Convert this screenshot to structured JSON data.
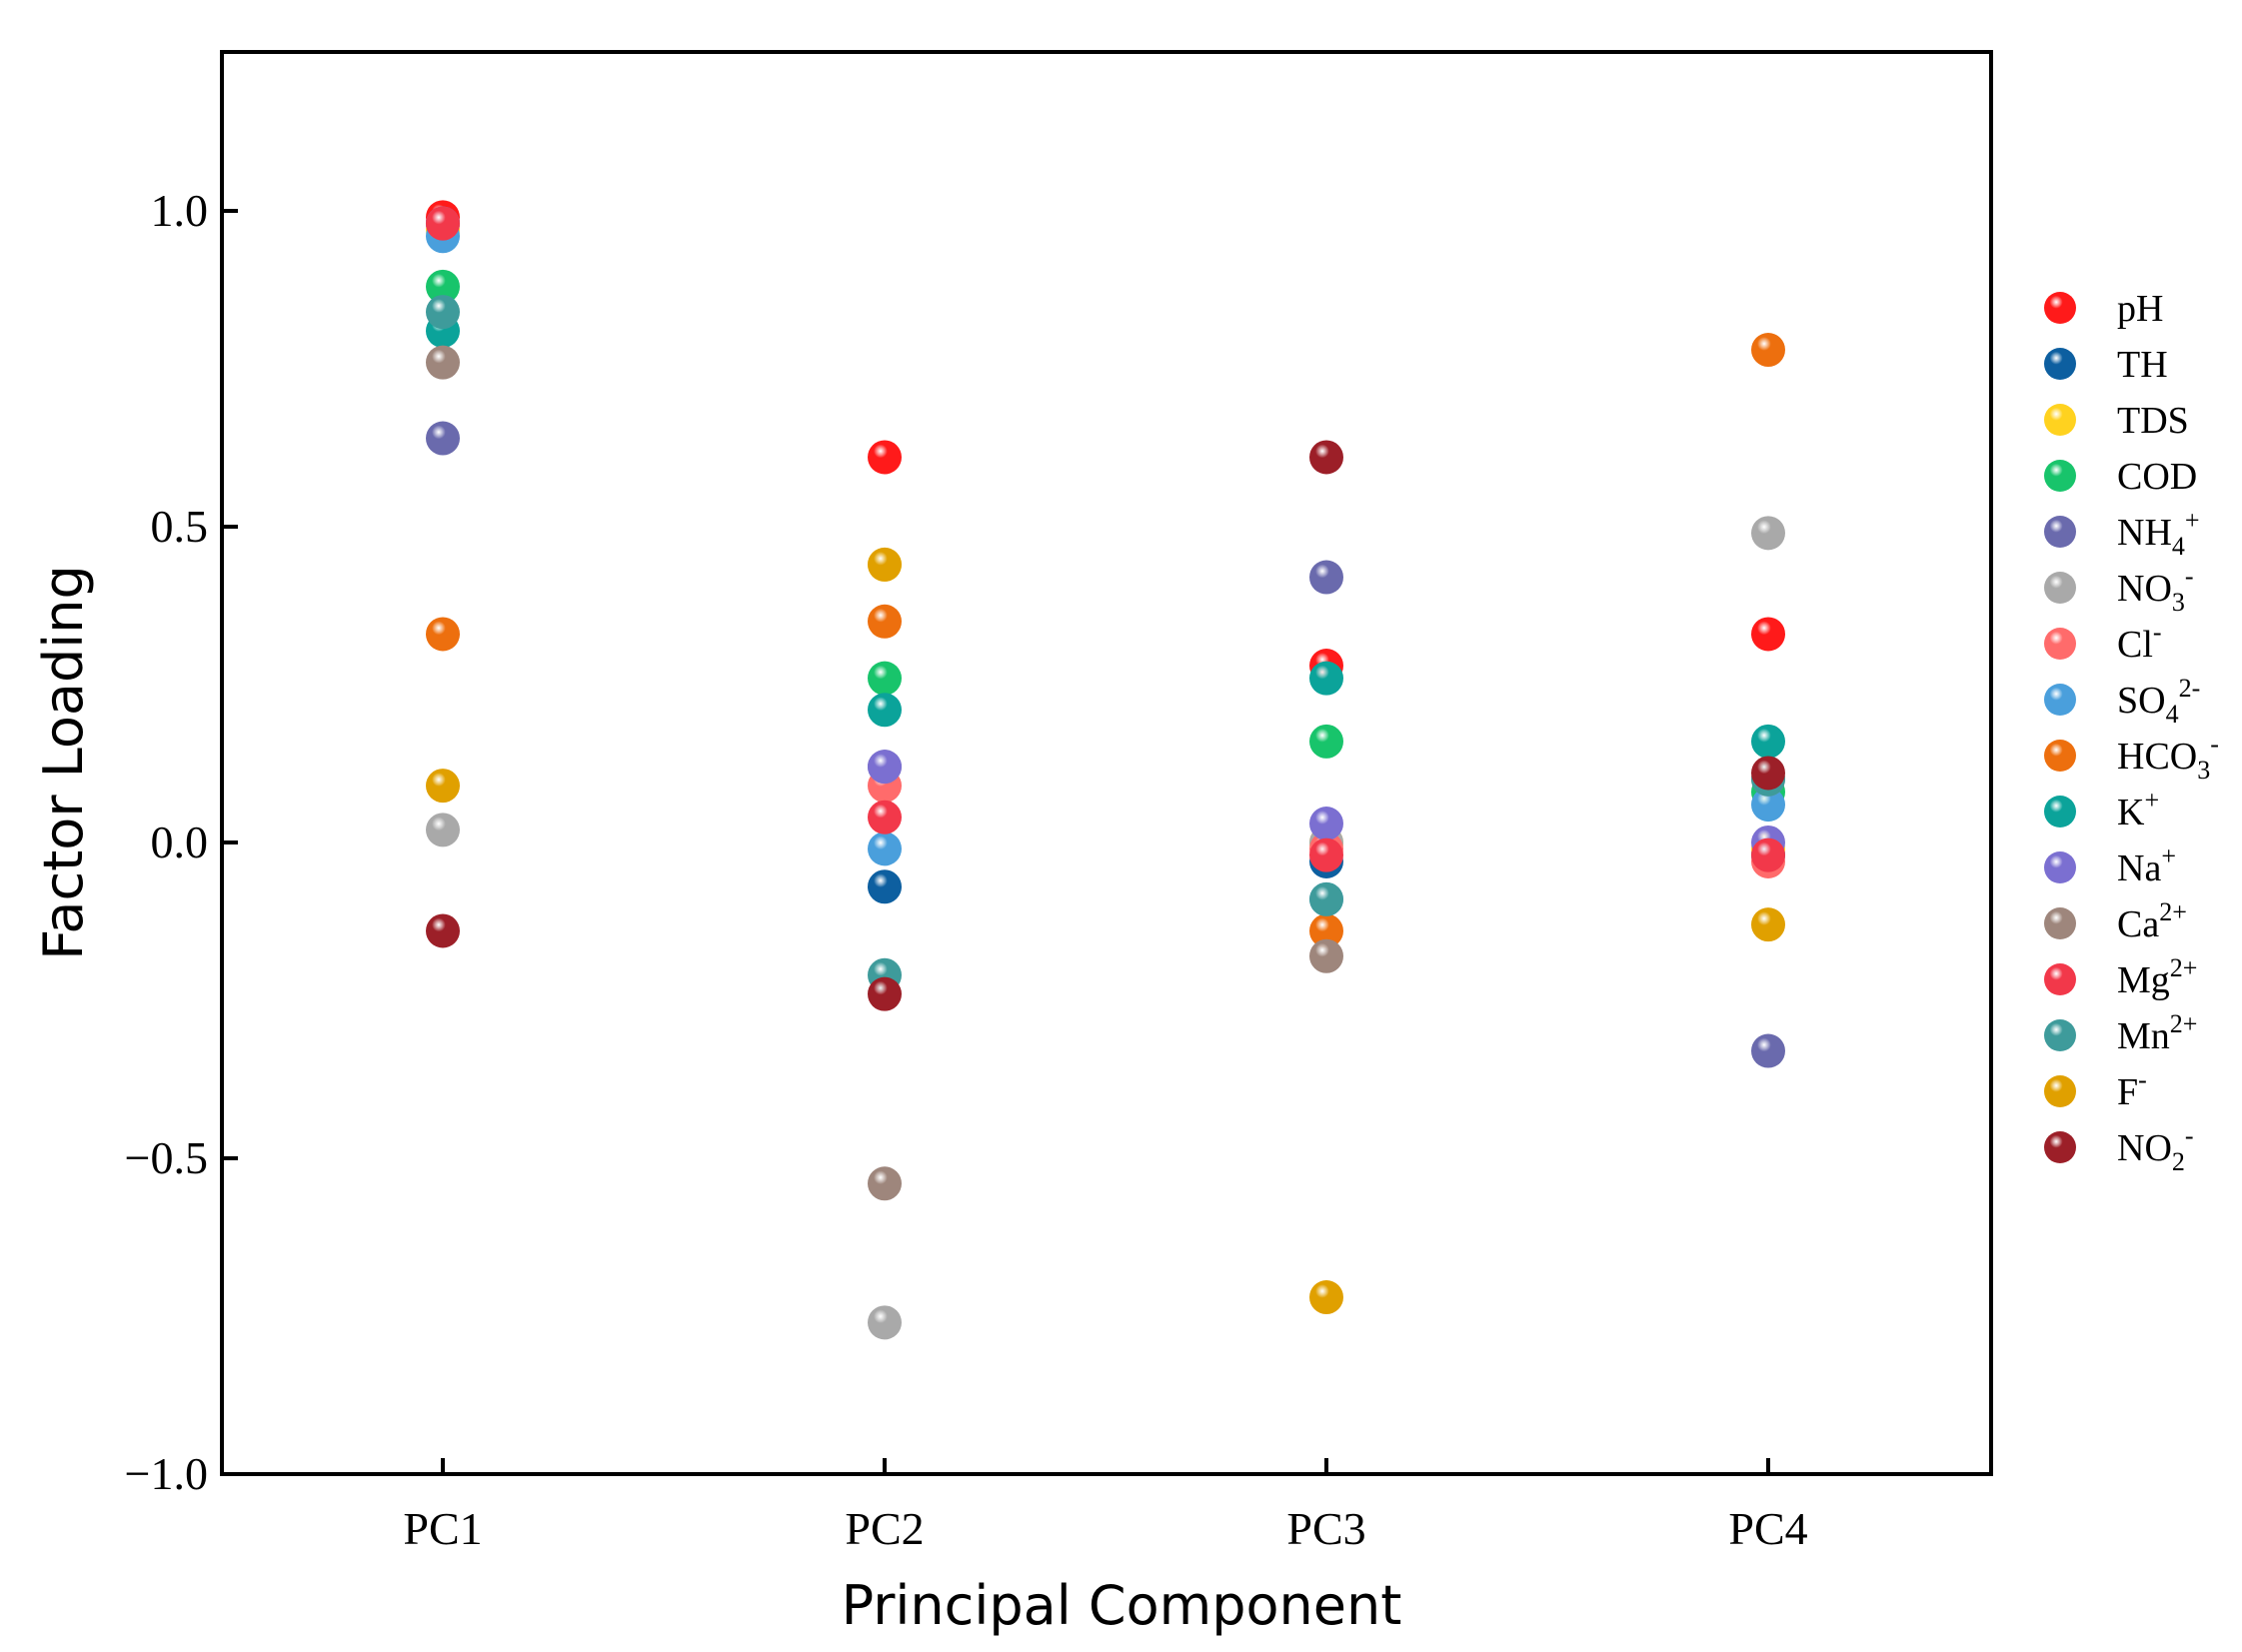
{
  "chart_data": {
    "type": "scatter",
    "title": "",
    "xlabel": "Principal Component",
    "ylabel": "Factor Loading",
    "categories": [
      "PC1",
      "PC2",
      "PC3",
      "PC4"
    ],
    "ylim": [
      -1.0,
      1.25
    ],
    "yticks": [
      1.0,
      0.5,
      0.0,
      -0.5,
      -1.0
    ],
    "ytick_labels": [
      "1.0",
      "0.5",
      "0.0",
      "−0.5",
      "−1.0"
    ],
    "grid": false,
    "legend_position": "right",
    "series": [
      {
        "name": "pH",
        "base": "pH",
        "sup": "",
        "sub": "",
        "color": "#ff1a1a",
        "values": [
          0.99,
          0.61,
          0.28,
          0.33
        ]
      },
      {
        "name": "TH",
        "base": "TH",
        "sup": "",
        "sub": "",
        "color": "#0d5fa0",
        "values": [
          0.98,
          -0.07,
          -0.03,
          -0.02
        ]
      },
      {
        "name": "TDS",
        "base": "TDS",
        "sup": "",
        "sub": "",
        "color": "#ffd21f",
        "values": [
          0.97,
          0.44,
          0.0,
          -0.01
        ]
      },
      {
        "name": "COD",
        "base": "COD",
        "sup": "",
        "sub": "",
        "color": "#18c46b",
        "values": [
          0.88,
          0.26,
          0.16,
          0.08
        ]
      },
      {
        "name": "NH4+",
        "base": "NH",
        "sub": "4",
        "sup": "+",
        "color": "#6a6aad",
        "values": [
          0.64,
          0.12,
          0.42,
          -0.33
        ]
      },
      {
        "name": "NO3-",
        "base": "NO",
        "sub": "3",
        "sup": "-",
        "color": "#a9a9a9",
        "values": [
          0.02,
          -0.76,
          0.0,
          0.49
        ]
      },
      {
        "name": "Cl-",
        "base": "Cl",
        "sub": "",
        "sup": "-",
        "color": "#ff6b6b",
        "values": [
          0.98,
          0.09,
          -0.01,
          -0.03
        ]
      },
      {
        "name": "SO42-",
        "base": "SO",
        "sub": "4",
        "sup": "2-",
        "color": "#4a9fdc",
        "values": [
          0.96,
          -0.01,
          -0.09,
          0.06
        ]
      },
      {
        "name": "HCO3-",
        "base": "HCO",
        "sub": "3",
        "sup": "-",
        "color": "#ed6f0e",
        "values": [
          0.33,
          0.35,
          -0.14,
          0.78
        ]
      },
      {
        "name": "K+",
        "base": "K",
        "sub": "",
        "sup": "+",
        "color": "#0ba39a",
        "values": [
          0.81,
          0.21,
          0.26,
          0.16
        ]
      },
      {
        "name": "Na+",
        "base": "Na",
        "sub": "",
        "sup": "+",
        "color": "#7b6fd1",
        "values": [
          0.98,
          0.12,
          0.03,
          0.0
        ]
      },
      {
        "name": "Ca2+",
        "base": "Ca",
        "sub": "",
        "sup": "2+",
        "color": "#9e867c",
        "values": [
          0.76,
          -0.54,
          -0.18,
          0.1
        ]
      },
      {
        "name": "Mg2+",
        "base": "Mg",
        "sub": "",
        "sup": "2+",
        "color": "#f2384a",
        "values": [
          0.98,
          0.04,
          -0.02,
          -0.02
        ]
      },
      {
        "name": "Mn2+",
        "base": "Mn",
        "sub": "",
        "sup": "2+",
        "color": "#3e9b9b",
        "values": [
          0.84,
          -0.21,
          -0.09,
          0.1
        ]
      },
      {
        "name": "F-",
        "base": "F",
        "sub": "",
        "sup": "-",
        "color": "#e0a000",
        "values": [
          0.09,
          0.44,
          -0.72,
          -0.13
        ]
      },
      {
        "name": "NO2-",
        "base": "NO",
        "sub": "2",
        "sup": "-",
        "color": "#9c1f28",
        "values": [
          -0.14,
          -0.24,
          0.61,
          0.11
        ]
      }
    ]
  }
}
